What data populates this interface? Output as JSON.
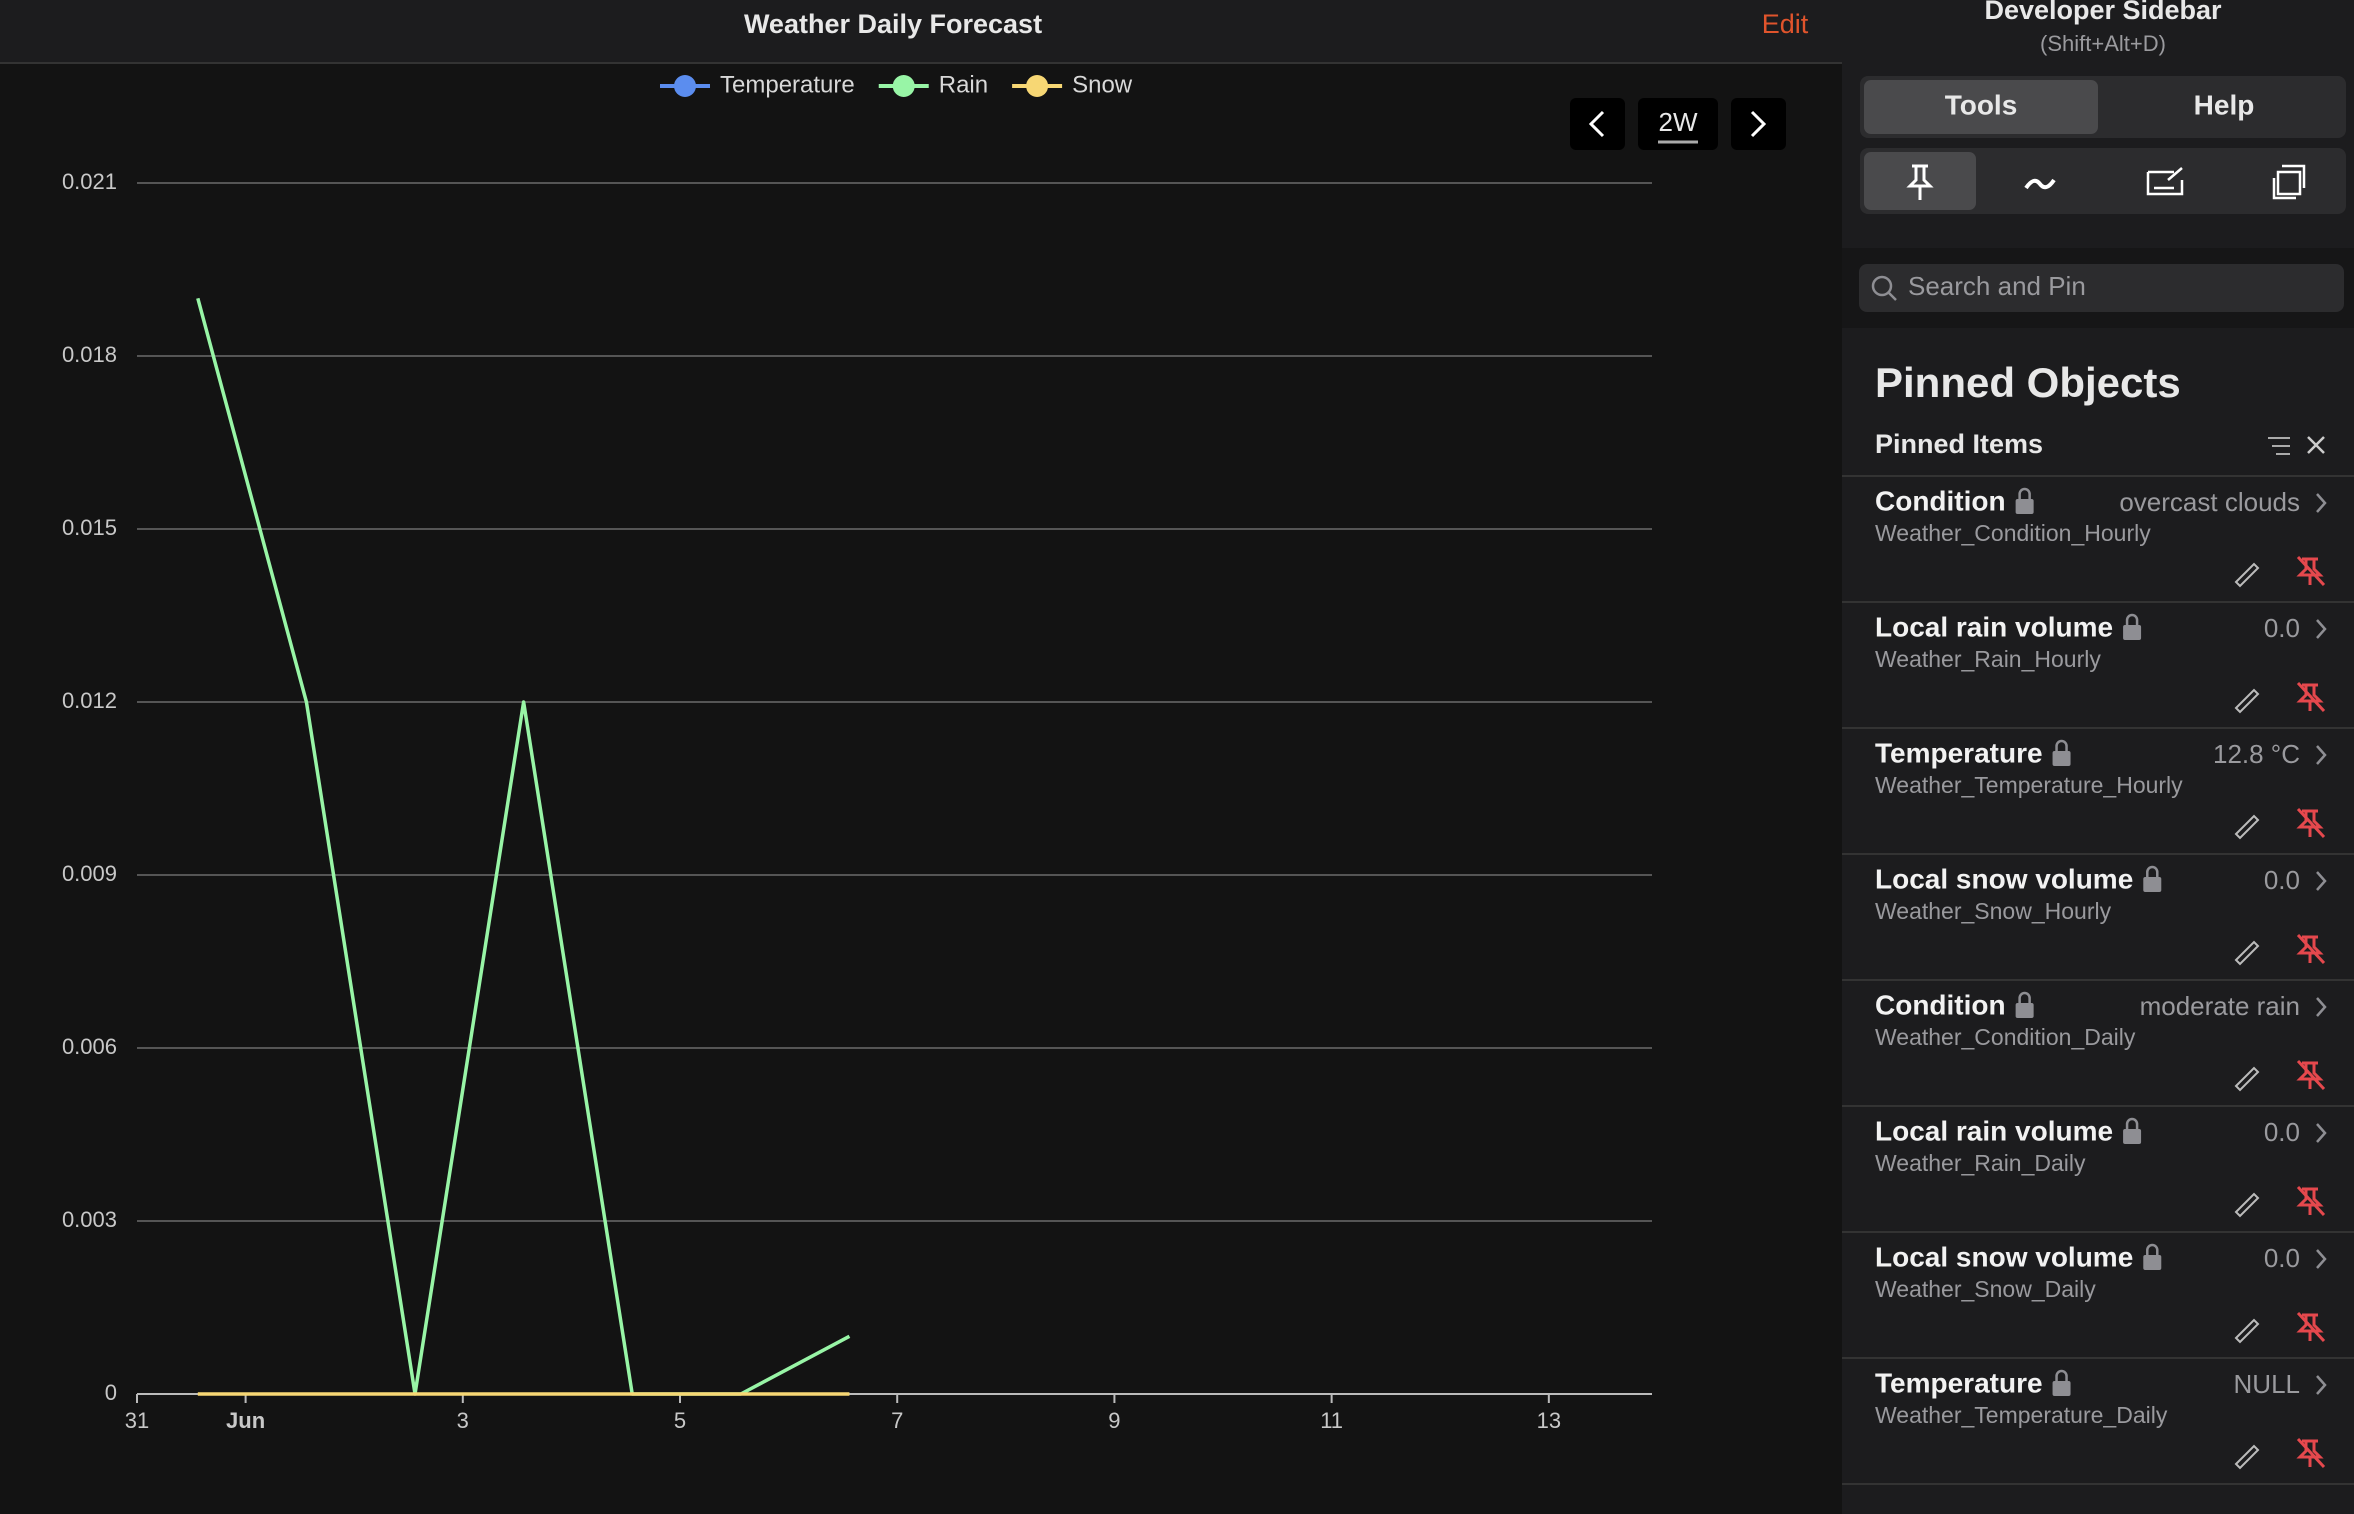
{
  "header": {
    "title": "Weather Daily Forecast",
    "edit": "Edit"
  },
  "range": "2W",
  "chart_data": {
    "type": "line",
    "x": [
      0.56,
      1.56,
      2.56,
      3.56,
      4.56,
      5.56,
      6.56
    ],
    "xlim": [
      0,
      13.95
    ],
    "xticks": [
      {
        "value": 0,
        "label": "31"
      },
      {
        "value": 1,
        "label": "Jun"
      },
      3,
      5,
      7,
      9,
      11,
      13
    ],
    "ylim": [
      0,
      0.021
    ],
    "yticks": [
      0,
      0.003,
      0.006,
      0.009,
      0.012,
      0.015,
      0.018,
      0.021
    ],
    "grid": true,
    "legend": "top",
    "series": [
      {
        "name": "Temperature",
        "color": "#5b8def",
        "values": [
          null,
          null,
          null,
          null,
          null,
          null,
          null
        ]
      },
      {
        "name": "Rain",
        "color": "#98f5a6",
        "values": [
          0.019,
          0.012,
          0,
          0.012,
          0,
          0,
          0.001
        ]
      },
      {
        "name": "Snow",
        "color": "#f7d774",
        "values": [
          0,
          0,
          0,
          0,
          0,
          0,
          0
        ]
      }
    ]
  },
  "sidebar": {
    "title": "Developer Sidebar",
    "shortcut": "(Shift+Alt+D)",
    "tabs": [
      "Tools",
      "Help"
    ],
    "search": "Search and Pin",
    "section": "Pinned Objects",
    "subsection": "Pinned Items",
    "items": [
      {
        "name": "Condition",
        "source": "Weather_Condition_Hourly",
        "value": "overcast clouds"
      },
      {
        "name": "Local rain volume",
        "source": "Weather_Rain_Hourly",
        "value": "0.0"
      },
      {
        "name": "Temperature",
        "source": "Weather_Temperature_Hourly",
        "value": "12.8 °C"
      },
      {
        "name": "Local snow volume",
        "source": "Weather_Snow_Hourly",
        "value": "0.0"
      },
      {
        "name": "Condition",
        "source": "Weather_Condition_Daily",
        "value": "moderate rain"
      },
      {
        "name": "Local rain volume",
        "source": "Weather_Rain_Daily",
        "value": "0.0"
      },
      {
        "name": "Local snow volume",
        "source": "Weather_Snow_Daily",
        "value": "0.0"
      },
      {
        "name": "Temperature",
        "source": "Weather_Temperature_Daily",
        "value": "NULL"
      }
    ]
  }
}
